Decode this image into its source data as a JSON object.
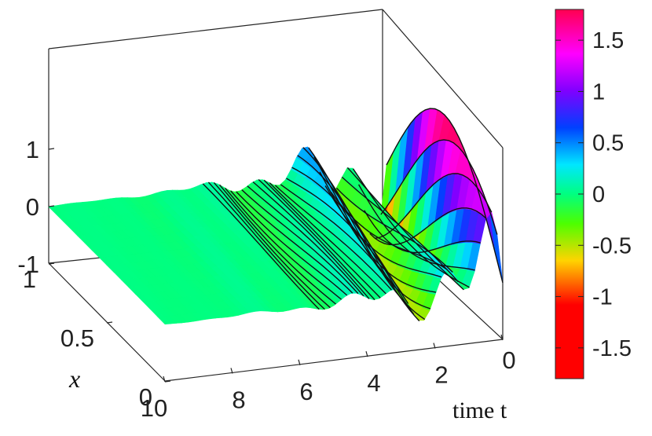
{
  "chart_data": {
    "type": "surface",
    "title": "",
    "x_axis": {
      "label": "time t",
      "ticks": [
        "0",
        "2",
        "4",
        "6",
        "8",
        "10"
      ],
      "range": [
        0,
        10
      ],
      "reversed": true
    },
    "y_axis": {
      "label": "x",
      "ticks": [
        "0",
        "0.5",
        "1"
      ],
      "range": [
        0,
        1
      ]
    },
    "z_axis": {
      "label": "",
      "ticks": [
        "1",
        "0",
        "-1"
      ],
      "range": [
        -1.8,
        1.8
      ]
    },
    "colorbar": {
      "range": [
        -1.8,
        1.8
      ],
      "ticks": [
        "1.5",
        "1",
        "0.5",
        "0",
        "-0.5",
        "-1",
        "-1.5"
      ],
      "colormap": "hsv (red–yellow–green–cyan–blue–magenta–red)"
    },
    "grid": false,
    "contour_lines": true
  }
}
